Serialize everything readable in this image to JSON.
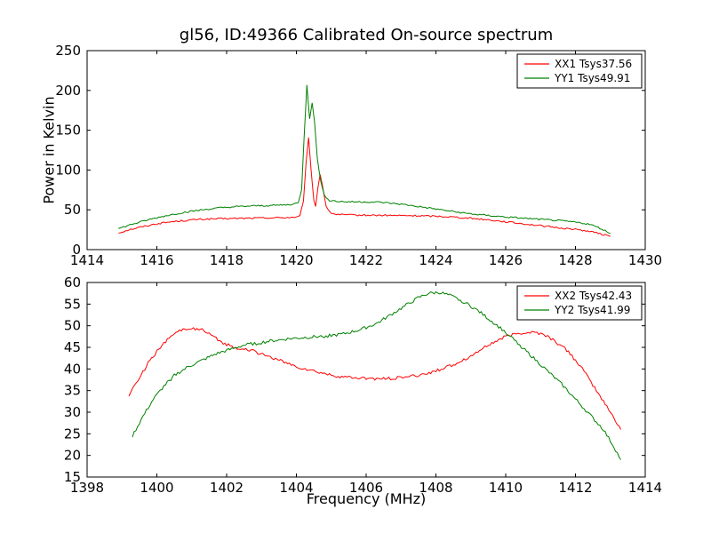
{
  "figure": {
    "title": "gl56, ID:49366 Calibrated On-source spectrum",
    "xlabel": "Frequency (MHz)",
    "background": "#ffffff",
    "axis_color": "#000000"
  },
  "chart_data": [
    {
      "type": "line",
      "ylabel": "Power in Kelvin",
      "xlim": [
        1414,
        1430
      ],
      "ylim": [
        0,
        250
      ],
      "x_ticks": [
        1414,
        1416,
        1418,
        1420,
        1422,
        1424,
        1426,
        1428,
        1430
      ],
      "y_ticks": [
        0,
        50,
        100,
        150,
        200,
        250
      ],
      "grid": false,
      "legend": {
        "position": "upper right",
        "entries": [
          {
            "label": "XX1 Tsys37.56",
            "color": "#ff0000"
          },
          {
            "label": "YY1 Tsys49.91",
            "color": "#008000"
          }
        ]
      },
      "series": [
        {
          "name": "XX1 Tsys37.56",
          "color": "#ff0000",
          "points": [
            [
              1414.9,
              21
            ],
            [
              1415.2,
              25
            ],
            [
              1415.6,
              29
            ],
            [
              1416.0,
              32.5
            ],
            [
              1416.4,
              35
            ],
            [
              1416.8,
              36.5
            ],
            [
              1417.2,
              38
            ],
            [
              1417.8,
              38.8
            ],
            [
              1418.4,
              39.3
            ],
            [
              1419.0,
              39.8
            ],
            [
              1419.6,
              40.2
            ],
            [
              1420.0,
              40.8
            ],
            [
              1420.1,
              42
            ],
            [
              1420.2,
              60
            ],
            [
              1420.28,
              110
            ],
            [
              1420.35,
              140
            ],
            [
              1420.42,
              100
            ],
            [
              1420.5,
              62
            ],
            [
              1420.55,
              55
            ],
            [
              1420.62,
              78
            ],
            [
              1420.68,
              95
            ],
            [
              1420.75,
              80
            ],
            [
              1420.85,
              55
            ],
            [
              1420.95,
              47
            ],
            [
              1421.1,
              44.5
            ],
            [
              1421.5,
              43.5
            ],
            [
              1422.0,
              43.2
            ],
            [
              1422.5,
              43
            ],
            [
              1423.0,
              42.8
            ],
            [
              1423.5,
              42.5
            ],
            [
              1424.0,
              42
            ],
            [
              1424.5,
              41
            ],
            [
              1425.0,
              39.5
            ],
            [
              1425.5,
              37.5
            ],
            [
              1426.0,
              35
            ],
            [
              1426.5,
              32.5
            ],
            [
              1427.0,
              30
            ],
            [
              1427.5,
              27.5
            ],
            [
              1428.0,
              25.5
            ],
            [
              1428.4,
              23
            ],
            [
              1428.7,
              20
            ],
            [
              1429.0,
              16.5
            ]
          ]
        },
        {
          "name": "YY1 Tsys49.91",
          "color": "#008000",
          "points": [
            [
              1414.9,
              26.5
            ],
            [
              1415.3,
              32
            ],
            [
              1415.8,
              38
            ],
            [
              1416.3,
              43
            ],
            [
              1416.8,
              47
            ],
            [
              1417.3,
              50
            ],
            [
              1417.8,
              52.5
            ],
            [
              1418.3,
              54
            ],
            [
              1418.8,
              55
            ],
            [
              1419.3,
              55.5
            ],
            [
              1419.8,
              56.5
            ],
            [
              1420.05,
              58.5
            ],
            [
              1420.15,
              75
            ],
            [
              1420.22,
              140
            ],
            [
              1420.3,
              207
            ],
            [
              1420.38,
              165
            ],
            [
              1420.45,
              185
            ],
            [
              1420.52,
              160
            ],
            [
              1420.6,
              115
            ],
            [
              1420.7,
              85
            ],
            [
              1420.8,
              68
            ],
            [
              1420.95,
              62
            ],
            [
              1421.2,
              60.5
            ],
            [
              1421.6,
              60
            ],
            [
              1422.0,
              60
            ],
            [
              1422.4,
              59.5
            ],
            [
              1422.8,
              58
            ],
            [
              1423.2,
              56
            ],
            [
              1423.6,
              53.5
            ],
            [
              1424.0,
              51
            ],
            [
              1424.4,
              48.5
            ],
            [
              1424.8,
              46
            ],
            [
              1425.2,
              44
            ],
            [
              1425.6,
              42.5
            ],
            [
              1426.0,
              41
            ],
            [
              1426.5,
              39.5
            ],
            [
              1427.0,
              38
            ],
            [
              1427.5,
              36.5
            ],
            [
              1428.0,
              34.5
            ],
            [
              1428.4,
              32
            ],
            [
              1428.7,
              27
            ],
            [
              1429.0,
              20.5
            ]
          ]
        }
      ]
    },
    {
      "type": "line",
      "ylabel": "",
      "xlim": [
        1398,
        1414
      ],
      "ylim": [
        15,
        60
      ],
      "x_ticks": [
        1398,
        1400,
        1402,
        1404,
        1406,
        1408,
        1410,
        1412,
        1414
      ],
      "y_ticks": [
        15,
        20,
        25,
        30,
        35,
        40,
        45,
        50,
        55,
        60
      ],
      "grid": false,
      "legend": {
        "position": "upper right",
        "entries": [
          {
            "label": "XX2 Tsys42.43",
            "color": "#ff0000"
          },
          {
            "label": "YY2 Tsys41.99",
            "color": "#008000"
          }
        ]
      },
      "series": [
        {
          "name": "XX2 Tsys42.43",
          "color": "#ff0000",
          "points": [
            [
              1399.2,
              34
            ],
            [
              1399.5,
              38
            ],
            [
              1399.8,
              42
            ],
            [
              1400.1,
              45
            ],
            [
              1400.4,
              47.5
            ],
            [
              1400.7,
              49
            ],
            [
              1401.0,
              49.5
            ],
            [
              1401.3,
              49
            ],
            [
              1401.6,
              47.5
            ],
            [
              1401.9,
              46
            ],
            [
              1402.2,
              45
            ],
            [
              1402.6,
              44.5
            ],
            [
              1403.0,
              43.5
            ],
            [
              1403.5,
              42
            ],
            [
              1404.0,
              40.5
            ],
            [
              1404.5,
              39.5
            ],
            [
              1405.0,
              38.5
            ],
            [
              1405.5,
              38
            ],
            [
              1406.0,
              37.8
            ],
            [
              1406.5,
              37.7
            ],
            [
              1407.0,
              38
            ],
            [
              1407.5,
              38.5
            ],
            [
              1408.0,
              39.5
            ],
            [
              1408.5,
              41
            ],
            [
              1409.0,
              43
            ],
            [
              1409.5,
              45.5
            ],
            [
              1410.0,
              47.5
            ],
            [
              1410.4,
              48.3
            ],
            [
              1410.8,
              48.5
            ],
            [
              1411.1,
              48
            ],
            [
              1411.4,
              46.5
            ],
            [
              1411.8,
              44
            ],
            [
              1412.2,
              40
            ],
            [
              1412.6,
              35
            ],
            [
              1413.0,
              30
            ],
            [
              1413.3,
              26
            ]
          ]
        },
        {
          "name": "YY2 Tsys41.99",
          "color": "#008000",
          "points": [
            [
              1399.3,
              24.5
            ],
            [
              1399.6,
              29
            ],
            [
              1399.9,
              33
            ],
            [
              1400.2,
              36
            ],
            [
              1400.5,
              38.5
            ],
            [
              1400.9,
              40.5
            ],
            [
              1401.3,
              42
            ],
            [
              1401.7,
              43.5
            ],
            [
              1402.1,
              44.5
            ],
            [
              1402.5,
              45.5
            ],
            [
              1402.9,
              46
            ],
            [
              1403.3,
              46.5
            ],
            [
              1403.8,
              47
            ],
            [
              1404.3,
              47.3
            ],
            [
              1404.8,
              47.6
            ],
            [
              1405.3,
              48
            ],
            [
              1405.8,
              49
            ],
            [
              1406.3,
              50.5
            ],
            [
              1406.7,
              52.5
            ],
            [
              1407.1,
              54.5
            ],
            [
              1407.5,
              56.5
            ],
            [
              1407.8,
              57.5
            ],
            [
              1408.1,
              57.7
            ],
            [
              1408.4,
              57
            ],
            [
              1408.8,
              55.5
            ],
            [
              1409.2,
              53.5
            ],
            [
              1409.6,
              51
            ],
            [
              1410.0,
              48.5
            ],
            [
              1410.4,
              45.5
            ],
            [
              1410.8,
              42.5
            ],
            [
              1411.2,
              39.5
            ],
            [
              1411.6,
              36.5
            ],
            [
              1412.0,
              33
            ],
            [
              1412.4,
              29.5
            ],
            [
              1412.8,
              26
            ],
            [
              1413.1,
              22
            ],
            [
              1413.3,
              19
            ]
          ]
        }
      ]
    }
  ]
}
